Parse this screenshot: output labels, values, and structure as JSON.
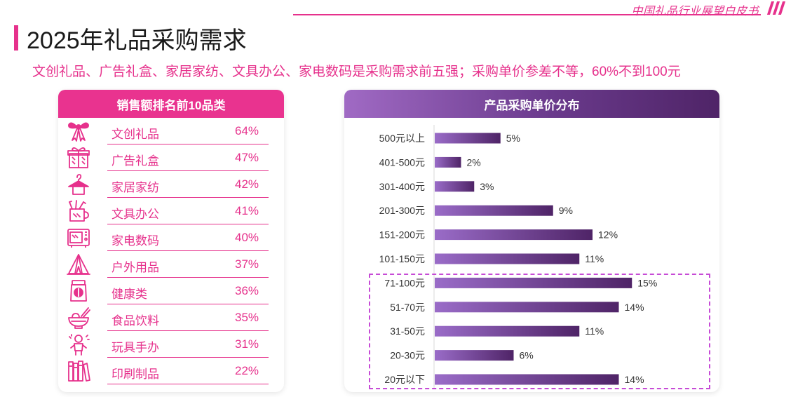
{
  "header": {
    "brand": "中国礼品行业展望白皮书",
    "title": "2025年礼品采购需求",
    "subtitle": "文创礼品、广告礼盒、家居家纺、文具办公、家电数码是采购需求前五强；采购单价参差不等，60%不到100元"
  },
  "ranking": {
    "title": "销售额排名前10品类",
    "items": [
      {
        "name": "文创礼品",
        "pct": "64%",
        "icon": "bow-icon"
      },
      {
        "name": "广告礼盒",
        "pct": "47%",
        "icon": "gift-box-icon"
      },
      {
        "name": "家居家纺",
        "pct": "42%",
        "icon": "hanger-icon"
      },
      {
        "name": "文具办公",
        "pct": "41%",
        "icon": "pen-holder-icon"
      },
      {
        "name": "家电数码",
        "pct": "40%",
        "icon": "microwave-icon"
      },
      {
        "name": "户外用品",
        "pct": "37%",
        "icon": "tent-icon"
      },
      {
        "name": "健康类",
        "pct": "36%",
        "icon": "health-jar-icon"
      },
      {
        "name": "食品饮料",
        "pct": "35%",
        "icon": "food-bowl-icon"
      },
      {
        "name": "玩具手办",
        "pct": "31%",
        "icon": "toy-figure-icon"
      },
      {
        "name": "印刷制品",
        "pct": "22%",
        "icon": "books-icon"
      }
    ]
  },
  "colors": {
    "accent": "#e6318c",
    "bar_start": "#9a6cc8",
    "bar_end": "#4f2467",
    "highlight_border": "#c64bd6"
  },
  "chart_data": {
    "type": "bar",
    "orientation": "horizontal",
    "title": "产品采购单价分布",
    "categories": [
      "500元以上",
      "401-500元",
      "301-400元",
      "201-300元",
      "151-200元",
      "101-150元",
      "71-100元",
      "51-70元",
      "31-50元",
      "20-30元",
      "20元以下"
    ],
    "values": [
      5,
      2,
      3,
      9,
      12,
      11,
      15,
      14,
      11,
      6,
      14
    ],
    "labels": [
      "5%",
      "2%",
      "3%",
      "9%",
      "12%",
      "11%",
      "15%",
      "14%",
      "11%",
      "6%",
      "14%"
    ],
    "highlight_categories": [
      "71-100元",
      "51-70元",
      "31-50元",
      "20-30元",
      "20元以下"
    ],
    "xlim": [
      0,
      16
    ],
    "xlabel": "",
    "ylabel": "",
    "grid": false
  }
}
